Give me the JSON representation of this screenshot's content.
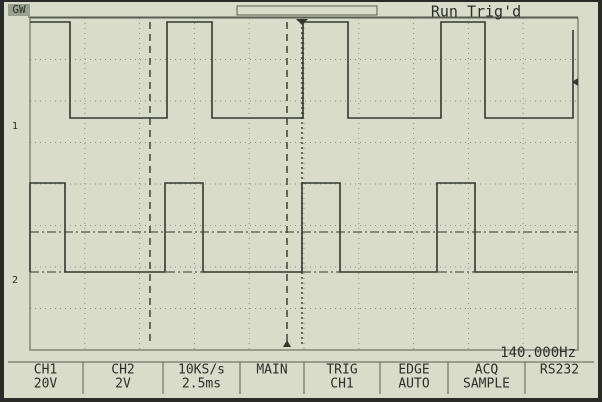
{
  "header": {
    "logo": "GW",
    "status": "Run Trig'd"
  },
  "markers": {
    "ch1": "1",
    "ch2": "2"
  },
  "frequency": "140.000Hz",
  "menu": [
    {
      "lines": [
        "CH1",
        "20V"
      ]
    },
    {
      "lines": [
        "CH2",
        "2V"
      ]
    },
    {
      "lines": [
        "10KS/s",
        "2.5ms"
      ]
    },
    {
      "lines": [
        "MAIN"
      ]
    },
    {
      "lines": [
        "TRIG",
        "CH1"
      ]
    },
    {
      "lines": [
        "EDGE",
        "AUTO"
      ]
    },
    {
      "lines": [
        "ACQ",
        "SAMPLE"
      ]
    },
    {
      "lines": [
        "RS232"
      ]
    }
  ]
}
